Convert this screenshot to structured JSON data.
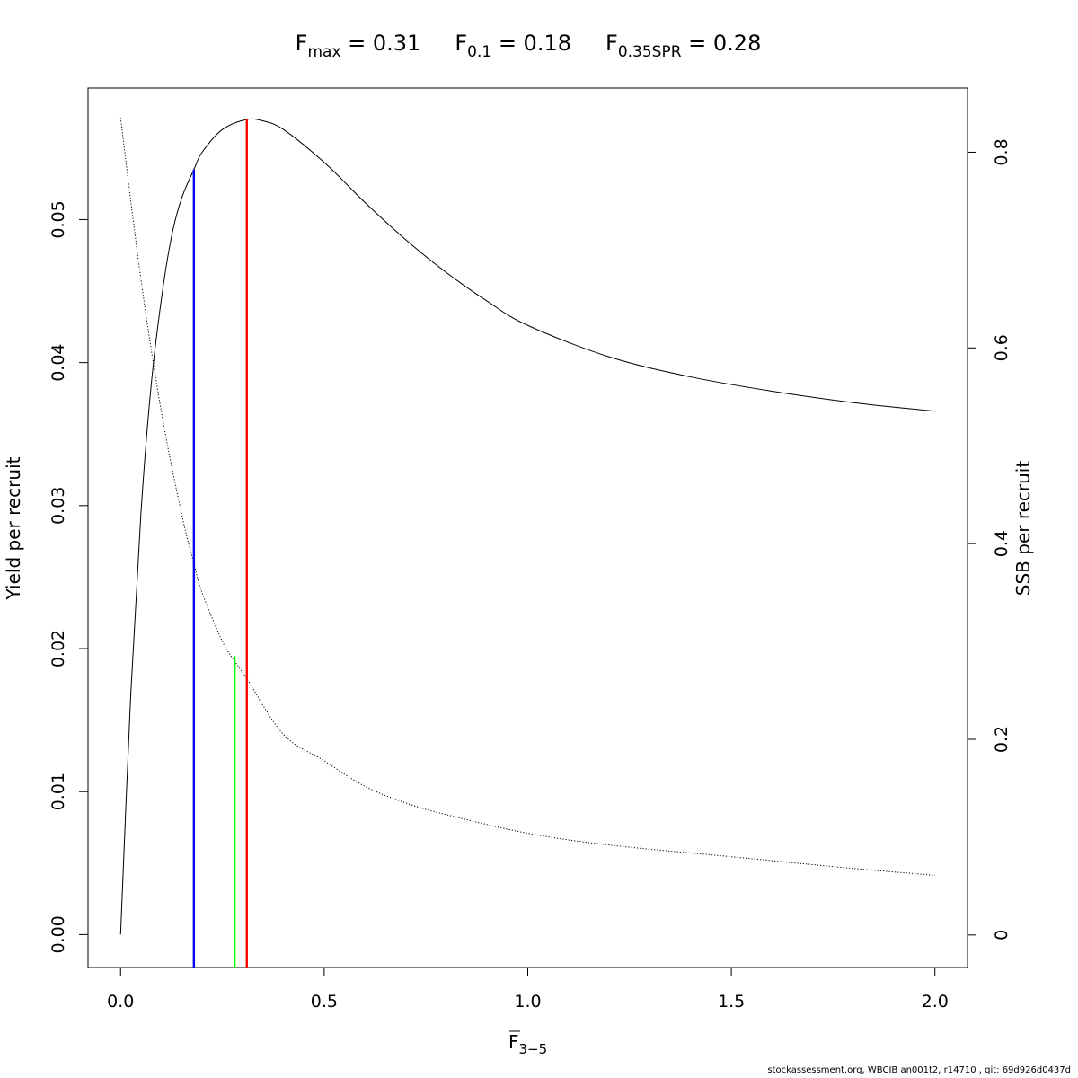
{
  "chart_data": {
    "type": "line",
    "title": {
      "parts": [
        {
          "base": "F",
          "sub": "max",
          "rest": " = 0.31"
        },
        {
          "base": "F",
          "sub": "0.1",
          "rest": " = 0.18"
        },
        {
          "base": "F",
          "sub": "0.35SPR",
          "rest": " = 0.28"
        }
      ]
    },
    "xlabel": {
      "base": "F",
      "sub": "3−5",
      "overline": true
    },
    "ylabel": "Yield per recruit",
    "y2label": "SSB per recruit",
    "xlim": [
      -0.08,
      2.08
    ],
    "ylim": [
      -0.0023,
      0.0592
    ],
    "y2lim": [
      -0.0332,
      0.8656
    ],
    "x_ticks": [
      "0.0",
      "0.5",
      "1.0",
      "1.5",
      "2.0"
    ],
    "y_ticks": [
      "0.00",
      "0.01",
      "0.02",
      "0.03",
      "0.04",
      "0.05"
    ],
    "y2_ticks": [
      "0",
      "0.2",
      "0.4",
      "0.6",
      "0.8"
    ],
    "grid": false,
    "series": [
      {
        "axis": "left",
        "style": "solid",
        "color": "#000000",
        "x": [
          0,
          0.025,
          0.05,
          0.075,
          0.1,
          0.125,
          0.15,
          0.18,
          0.2,
          0.25,
          0.31,
          0.35,
          0.4,
          0.5,
          0.6,
          0.7,
          0.8,
          0.9,
          1.0,
          1.2,
          1.4,
          1.6,
          1.8,
          2.0
        ],
        "y": [
          0.0,
          0.0168,
          0.0295,
          0.0384,
          0.0444,
          0.0488,
          0.0515,
          0.0535,
          0.0547,
          0.0563,
          0.057,
          0.0569,
          0.0563,
          0.054,
          0.0512,
          0.0486,
          0.0463,
          0.0443,
          0.0426,
          0.0404,
          0.039,
          0.038,
          0.0372,
          0.0366
        ]
      },
      {
        "axis": "right",
        "style": "dotted",
        "color": "#000000",
        "x": [
          0,
          0.05,
          0.1,
          0.15,
          0.18,
          0.2,
          0.25,
          0.28,
          0.31,
          0.4,
          0.5,
          0.6,
          0.7,
          0.8,
          1.0,
          1.2,
          1.5,
          1.8,
          2.0
        ],
        "y": [
          0.835,
          0.67,
          0.535,
          0.43,
          0.38,
          0.35,
          0.3,
          0.28,
          0.262,
          0.205,
          0.178,
          0.152,
          0.135,
          0.123,
          0.104,
          0.092,
          0.08,
          0.068,
          0.061
        ]
      }
    ],
    "reference_lines": [
      {
        "x": 0.18,
        "y_top": 0.0535,
        "axis": "left",
        "color": "#0000ff"
      },
      {
        "x": 0.28,
        "y_top": 0.285,
        "axis": "right",
        "color": "#00ff00"
      },
      {
        "x": 0.31,
        "y_top": 0.057,
        "axis": "left",
        "color": "#ff0000"
      }
    ]
  },
  "footer": "stockassessment.org, WBCIB  an001t2, r14710 , git: 69d926d0437d"
}
